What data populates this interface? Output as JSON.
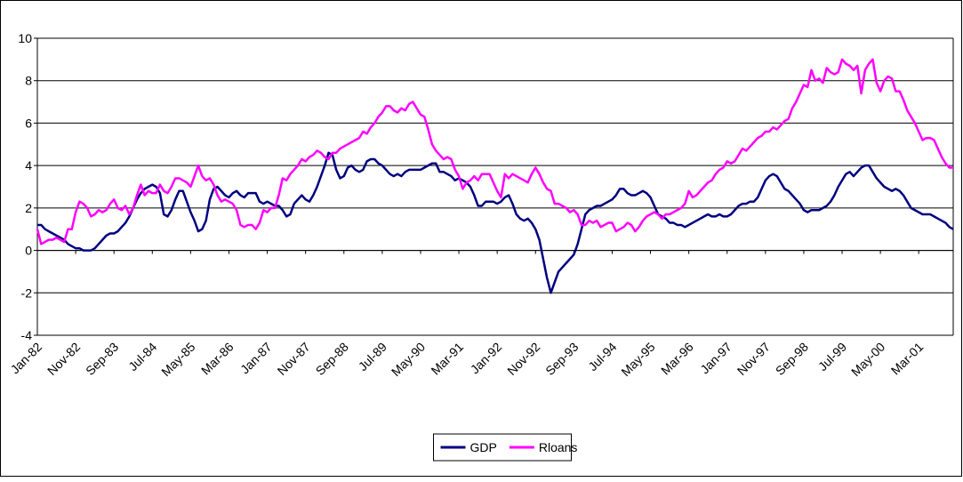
{
  "chart_data": {
    "type": "line",
    "categories": [
      "Jan-82",
      null,
      null,
      null,
      null,
      null,
      null,
      null,
      null,
      null,
      "Nov-82",
      null,
      null,
      null,
      null,
      null,
      null,
      null,
      null,
      null,
      "Sep-83",
      null,
      null,
      null,
      null,
      null,
      null,
      null,
      null,
      null,
      "Jul-84",
      null,
      null,
      null,
      null,
      null,
      null,
      null,
      null,
      null,
      "May-85",
      null,
      null,
      null,
      null,
      null,
      null,
      null,
      null,
      null,
      "Mar-86",
      null,
      null,
      null,
      null,
      null,
      null,
      null,
      null,
      null,
      "Jan-87",
      null,
      null,
      null,
      null,
      null,
      null,
      null,
      null,
      null,
      "Nov-87",
      null,
      null,
      null,
      null,
      null,
      null,
      null,
      null,
      null,
      "Sep-88",
      null,
      null,
      null,
      null,
      null,
      null,
      null,
      null,
      null,
      "Jul-89",
      null,
      null,
      null,
      null,
      null,
      null,
      null,
      null,
      null,
      "May-90",
      null,
      null,
      null,
      null,
      null,
      null,
      null,
      null,
      null,
      "Mar-91",
      null,
      null,
      null,
      null,
      null,
      null,
      null,
      null,
      null,
      "Jan-92",
      null,
      null,
      null,
      null,
      null,
      null,
      null,
      null,
      null,
      "Nov-92",
      null,
      null,
      null,
      null,
      null,
      null,
      null,
      null,
      null,
      "Sep-93",
      null,
      null,
      null,
      null,
      null,
      null,
      null,
      null,
      null,
      "Jul-94",
      null,
      null,
      null,
      null,
      null,
      null,
      null,
      null,
      null,
      "May-95",
      null,
      null,
      null,
      null,
      null,
      null,
      null,
      null,
      null,
      "Mar-96",
      null,
      null,
      null,
      null,
      null,
      null,
      null,
      null,
      null,
      "Jan-97",
      null,
      null,
      null,
      null,
      null,
      null,
      null,
      null,
      null,
      "Nov-97",
      null,
      null,
      null,
      null,
      null,
      null,
      null,
      null,
      null,
      "Sep-98",
      null,
      null,
      null,
      null,
      null,
      null,
      null,
      null,
      null,
      "Jul-99",
      null,
      null,
      null,
      null,
      null,
      null,
      null,
      null,
      null,
      "May-00",
      null,
      null,
      null,
      null,
      null,
      null,
      null,
      null,
      null,
      "Mar-01",
      null,
      null,
      null,
      null,
      null,
      null,
      null,
      null,
      null
    ],
    "series": [
      {
        "name": "GDP",
        "color": "#000080",
        "values": [
          1.2,
          1.2,
          1.0,
          0.9,
          0.8,
          0.7,
          0.6,
          0.5,
          0.3,
          0.2,
          0.1,
          0.1,
          0.0,
          0.0,
          0.0,
          0.1,
          0.3,
          0.5,
          0.7,
          0.8,
          0.8,
          0.9,
          1.1,
          1.3,
          1.6,
          2.0,
          2.4,
          2.7,
          2.9,
          3.0,
          3.1,
          3.0,
          2.7,
          1.7,
          1.6,
          1.9,
          2.4,
          2.8,
          2.8,
          2.3,
          1.8,
          1.4,
          0.9,
          1.0,
          1.4,
          2.4,
          2.9,
          3.0,
          2.8,
          2.6,
          2.5,
          2.7,
          2.8,
          2.6,
          2.5,
          2.7,
          2.7,
          2.7,
          2.3,
          2.2,
          2.3,
          2.2,
          2.1,
          2.1,
          1.9,
          1.6,
          1.7,
          2.2,
          2.4,
          2.6,
          2.4,
          2.3,
          2.6,
          3.0,
          3.5,
          4.0,
          4.6,
          4.5,
          3.8,
          3.4,
          3.5,
          3.9,
          4.0,
          3.8,
          3.7,
          3.8,
          4.2,
          4.3,
          4.3,
          4.1,
          4.0,
          3.8,
          3.6,
          3.5,
          3.6,
          3.5,
          3.7,
          3.8,
          3.8,
          3.8,
          3.8,
          3.9,
          4.0,
          4.1,
          4.1,
          3.7,
          3.7,
          3.6,
          3.5,
          3.3,
          3.4,
          3.3,
          3.2,
          3.0,
          2.6,
          2.1,
          2.1,
          2.3,
          2.3,
          2.3,
          2.2,
          2.3,
          2.5,
          2.6,
          2.2,
          1.7,
          1.5,
          1.4,
          1.5,
          1.3,
          1.0,
          0.5,
          -0.4,
          -1.3,
          -2.0,
          -1.5,
          -1.0,
          -0.8,
          -0.6,
          -0.4,
          -0.2,
          0.3,
          1.0,
          1.7,
          1.9,
          2.0,
          2.1,
          2.1,
          2.2,
          2.3,
          2.4,
          2.6,
          2.9,
          2.9,
          2.7,
          2.6,
          2.6,
          2.7,
          2.8,
          2.7,
          2.5,
          2.1,
          1.7,
          1.6,
          1.5,
          1.3,
          1.3,
          1.2,
          1.2,
          1.1,
          1.2,
          1.3,
          1.4,
          1.5,
          1.6,
          1.7,
          1.6,
          1.6,
          1.7,
          1.6,
          1.6,
          1.7,
          1.9,
          2.1,
          2.2,
          2.2,
          2.3,
          2.3,
          2.5,
          2.9,
          3.3,
          3.5,
          3.6,
          3.5,
          3.2,
          2.9,
          2.8,
          2.6,
          2.4,
          2.2,
          1.9,
          1.8,
          1.9,
          1.9,
          1.9,
          2.0,
          2.1,
          2.3,
          2.6,
          3.0,
          3.3,
          3.6,
          3.7,
          3.5,
          3.7,
          3.9,
          4.0,
          4.0,
          3.7,
          3.4,
          3.2,
          3.0,
          2.9,
          2.8,
          2.9,
          2.8,
          2.6,
          2.3,
          2.0,
          1.9,
          1.8,
          1.7,
          1.7,
          1.7,
          1.6,
          1.5,
          1.4,
          1.3,
          1.1,
          1.0
        ]
      },
      {
        "name": "Rloans",
        "color": "#ff00ff",
        "values": [
          1.0,
          0.3,
          0.4,
          0.5,
          0.5,
          0.6,
          0.5,
          0.4,
          1.0,
          1.0,
          1.8,
          2.3,
          2.2,
          2.0,
          1.6,
          1.7,
          1.9,
          1.8,
          1.9,
          2.2,
          2.4,
          2.0,
          1.9,
          2.1,
          1.7,
          2.0,
          2.6,
          3.1,
          2.6,
          2.8,
          2.7,
          2.7,
          3.1,
          2.8,
          2.7,
          3.0,
          3.4,
          3.4,
          3.3,
          3.2,
          3.0,
          3.5,
          4.0,
          3.5,
          3.3,
          3.4,
          3.1,
          2.6,
          2.3,
          2.4,
          2.3,
          2.2,
          1.9,
          1.2,
          1.1,
          1.2,
          1.2,
          1.0,
          1.3,
          1.9,
          1.8,
          2.0,
          2.0,
          2.6,
          3.4,
          3.3,
          3.6,
          3.8,
          4.0,
          4.3,
          4.2,
          4.4,
          4.5,
          4.7,
          4.6,
          4.4,
          4.3,
          4.6,
          4.6,
          4.8,
          4.9,
          5.0,
          5.1,
          5.2,
          5.3,
          5.6,
          5.5,
          5.8,
          6.0,
          6.3,
          6.5,
          6.8,
          6.8,
          6.6,
          6.5,
          6.7,
          6.6,
          6.9,
          7.0,
          6.7,
          6.4,
          6.3,
          5.7,
          5.0,
          4.7,
          4.5,
          4.3,
          4.4,
          4.3,
          3.8,
          3.5,
          2.9,
          3.2,
          3.3,
          3.5,
          3.3,
          3.6,
          3.6,
          3.6,
          3.2,
          2.8,
          2.5,
          3.6,
          3.4,
          3.6,
          3.5,
          3.4,
          3.3,
          3.2,
          3.6,
          3.9,
          3.6,
          3.2,
          2.9,
          2.8,
          2.2,
          2.2,
          2.1,
          2.0,
          1.8,
          1.9,
          1.7,
          1.2,
          1.2,
          1.4,
          1.3,
          1.4,
          1.1,
          1.2,
          1.3,
          1.3,
          0.9,
          1.0,
          1.1,
          1.3,
          1.2,
          0.9,
          1.1,
          1.4,
          1.6,
          1.7,
          1.8,
          1.7,
          1.5,
          1.7,
          1.7,
          1.8,
          1.9,
          2.0,
          2.2,
          2.8,
          2.5,
          2.6,
          2.8,
          3.0,
          3.2,
          3.3,
          3.6,
          3.8,
          3.9,
          4.2,
          4.1,
          4.2,
          4.5,
          4.8,
          4.7,
          4.9,
          5.1,
          5.3,
          5.4,
          5.6,
          5.6,
          5.8,
          5.7,
          5.9,
          6.1,
          6.2,
          6.7,
          7.0,
          7.4,
          7.8,
          7.7,
          8.5,
          8.0,
          8.1,
          7.9,
          8.6,
          8.4,
          8.3,
          8.4,
          9.0,
          8.8,
          8.7,
          8.5,
          8.7,
          7.4,
          8.5,
          8.8,
          9.0,
          7.9,
          7.5,
          8.0,
          8.2,
          8.1,
          7.5,
          7.5,
          7.1,
          6.6,
          6.3,
          6.0,
          5.6,
          5.2,
          5.3,
          5.3,
          5.2,
          4.8,
          4.4,
          4.1,
          3.9,
          3.9
        ]
      }
    ],
    "ylim": [
      -4,
      10
    ],
    "yticks": [
      -4,
      -2,
      0,
      2,
      4,
      6,
      8,
      10
    ],
    "grid": true,
    "legend": "bottom"
  }
}
